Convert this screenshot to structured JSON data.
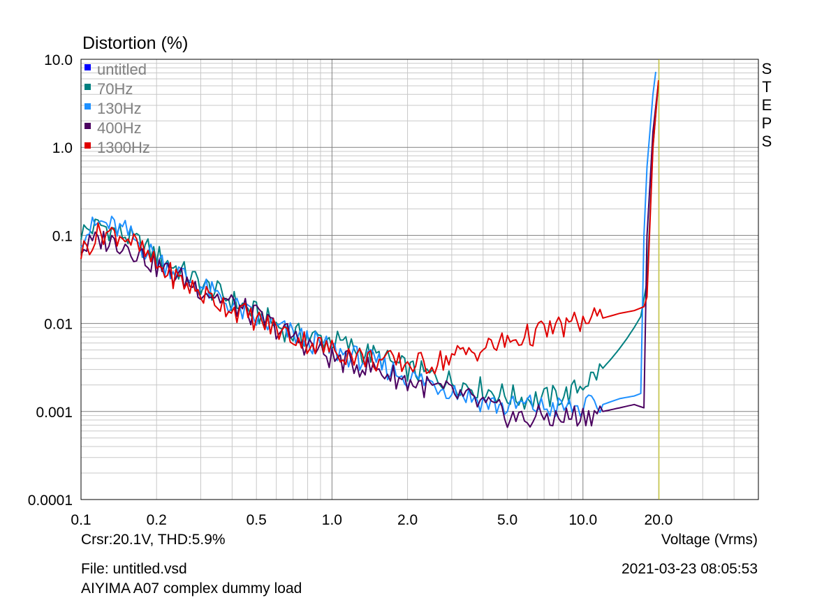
{
  "chart_data": {
    "type": "line",
    "title": "Distortion (%)",
    "xlabel": "Voltage (Vrms)",
    "x_scale": "log",
    "y_scale": "log",
    "xlim": [
      0.1,
      50
    ],
    "ylim": [
      0.0001,
      10
    ],
    "x_ticks": [
      "0.1",
      "0.2",
      "0.5",
      "1.0",
      "2.0",
      "5.0",
      "10.0",
      "20.0"
    ],
    "y_ticks": [
      "10.0",
      "1.0",
      "0.1",
      "0.01",
      "0.001",
      "0.0001"
    ],
    "grid": true,
    "legend_position": "top-left",
    "right_label": "STEPS",
    "cursor": {
      "x": 20.1,
      "color": "#c8c800",
      "readout": "Crsr:20.1V, THD:5.9%"
    },
    "series": [
      {
        "name": "untitled",
        "color": "#0000ff",
        "x": [],
        "y": []
      },
      {
        "name": "70Hz",
        "color": "#008080",
        "x": [
          0.1,
          0.12,
          0.15,
          0.2,
          0.3,
          0.5,
          0.7,
          1.0,
          1.5,
          2.0,
          3.0,
          4.0,
          5.0,
          6.0,
          7.0,
          8.0,
          9.0,
          10.0,
          11.0,
          12.0,
          13.0,
          14.0,
          15.0,
          16.0,
          17.0,
          18.0,
          19.0,
          20.0
        ],
        "y": [
          0.11,
          0.13,
          0.1,
          0.06,
          0.028,
          0.013,
          0.0075,
          0.0065,
          0.0042,
          0.003,
          0.0022,
          0.0018,
          0.0015,
          0.0014,
          0.0014,
          0.0015,
          0.0016,
          0.0021,
          0.0025,
          0.0031,
          0.004,
          0.0052,
          0.0068,
          0.009,
          0.012,
          0.03,
          1.0,
          5.5
        ]
      },
      {
        "name": "130Hz",
        "color": "#1e90ff",
        "x": [
          0.1,
          0.12,
          0.15,
          0.2,
          0.3,
          0.5,
          0.7,
          1.0,
          1.5,
          2.0,
          3.0,
          4.0,
          5.0,
          6.0,
          7.0,
          8.0,
          10.0,
          12.0,
          14.0,
          16.0,
          17.0,
          17.5,
          18.0,
          19.0,
          19.5
        ],
        "y": [
          0.1,
          0.14,
          0.11,
          0.055,
          0.026,
          0.011,
          0.0075,
          0.005,
          0.0035,
          0.0025,
          0.0018,
          0.0013,
          0.0011,
          0.0012,
          0.0011,
          0.0011,
          0.0011,
          0.0012,
          0.0014,
          0.0015,
          0.0016,
          0.1,
          0.6,
          4.0,
          7.2
        ]
      },
      {
        "name": "400Hz",
        "color": "#4b0060",
        "x": [
          0.1,
          0.12,
          0.15,
          0.2,
          0.3,
          0.5,
          0.7,
          1.0,
          1.5,
          2.0,
          3.0,
          4.0,
          5.0,
          6.0,
          7.0,
          8.0,
          9.0,
          10.0,
          12.0,
          14.0,
          16.0,
          17.5,
          18.0,
          19.0,
          20.0
        ],
        "y": [
          0.07,
          0.09,
          0.08,
          0.045,
          0.025,
          0.012,
          0.007,
          0.004,
          0.003,
          0.0022,
          0.0016,
          0.0012,
          0.0009,
          0.0008,
          0.0009,
          0.0008,
          0.0009,
          0.0009,
          0.001,
          0.0011,
          0.0012,
          0.0011,
          0.1,
          1.5,
          5.6
        ]
      },
      {
        "name": "1300Hz",
        "color": "#e00000",
        "x": [
          0.1,
          0.12,
          0.15,
          0.2,
          0.3,
          0.5,
          0.7,
          1.0,
          1.5,
          2.0,
          2.5,
          3.0,
          4.0,
          5.0,
          6.0,
          7.0,
          8.0,
          9.0,
          10.0,
          12.0,
          14.0,
          16.0,
          17.0,
          17.5,
          18.0,
          19.0,
          20.0
        ],
        "y": [
          0.065,
          0.11,
          0.1,
          0.045,
          0.022,
          0.011,
          0.007,
          0.005,
          0.0038,
          0.0035,
          0.0035,
          0.0042,
          0.0052,
          0.0062,
          0.0072,
          0.0082,
          0.009,
          0.0098,
          0.0105,
          0.0115,
          0.013,
          0.014,
          0.015,
          0.0155,
          0.02,
          1.0,
          5.8
        ]
      }
    ]
  },
  "footer": {
    "file": "File: untitled.vsd",
    "timestamp": "2021-03-23  08:05:53",
    "description": "AIYIMA A07 complex dummy load"
  }
}
